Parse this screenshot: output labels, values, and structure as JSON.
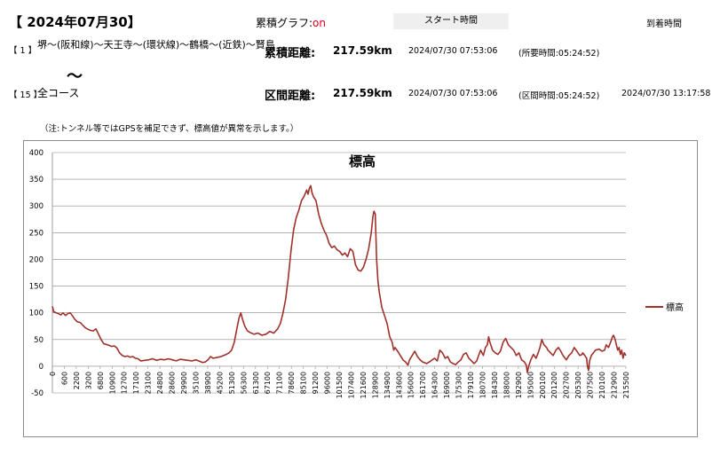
{
  "header": {
    "date": "【 2024年07月30】",
    "graph_label": "累積グラフ:",
    "graph_state": "on",
    "start_time_label": "スタート時間",
    "arrival_time_label": "到着時間"
  },
  "route": {
    "start_num": "【 1 】",
    "start_name": "堺～(阪和線)～天王寺～(環状線)～鶴橋～(近鉄)～賢島",
    "tilde": "～",
    "end_num": "【 15 】",
    "end_name": "全コース"
  },
  "rows": [
    {
      "label": "累積距離:",
      "distance": "217.59km",
      "start": "2024/07/30 07:53:06",
      "duration": "(所要時間:05:24:52)",
      "arrival": ""
    },
    {
      "label": "区間距離:",
      "distance": "217.59km",
      "start": "2024/07/30 07:53:06",
      "duration": "(区間時間:05:24:52)",
      "arrival": "2024/07/30 13:17:58"
    }
  ],
  "note": "（注:トンネル等ではGPSを補足できず、標高値が異常を示します。）",
  "chart_data": {
    "type": "line",
    "title": "標高",
    "xlabel": "",
    "ylabel": "",
    "ylim": [
      -50,
      400
    ],
    "yticks": [
      "400",
      "350",
      "300",
      "250",
      "200",
      "150",
      "100",
      "50",
      "0",
      "-50"
    ],
    "xticks": [
      "0",
      "600",
      "2200",
      "3200",
      "6800",
      "10900",
      "12700",
      "17100",
      "23100",
      "24800",
      "28600",
      "29900",
      "35100",
      "38900",
      "45200",
      "51300",
      "56300",
      "61300",
      "67100",
      "71100",
      "78600",
      "85100",
      "91200",
      "96000",
      "101500",
      "107400",
      "121600",
      "128900",
      "134900",
      "143600",
      "156000",
      "161700",
      "164300",
      "169000",
      "175300",
      "179100",
      "180700",
      "184300",
      "188000",
      "192900",
      "195000",
      "200100",
      "201200",
      "202700",
      "205300",
      "207500",
      "210100",
      "212900",
      "215500"
    ],
    "xmax": 217590,
    "grid": true,
    "legend_position": "right",
    "series": [
      {
        "name": "標高",
        "color": "#a0302a",
        "points": [
          [
            0,
            112
          ],
          [
            500,
            102
          ],
          [
            1500,
            100
          ],
          [
            2500,
            98
          ],
          [
            3200,
            96
          ],
          [
            4000,
            100
          ],
          [
            5000,
            95
          ],
          [
            6000,
            99
          ],
          [
            6800,
            100
          ],
          [
            7500,
            95
          ],
          [
            8500,
            88
          ],
          [
            9500,
            83
          ],
          [
            10500,
            82
          ],
          [
            11500,
            77
          ],
          [
            12500,
            72
          ],
          [
            13500,
            69
          ],
          [
            14500,
            67
          ],
          [
            15500,
            66
          ],
          [
            16500,
            70
          ],
          [
            17500,
            60
          ],
          [
            18500,
            50
          ],
          [
            19500,
            42
          ],
          [
            21000,
            40
          ],
          [
            22500,
            37
          ],
          [
            23500,
            38
          ],
          [
            24500,
            34
          ],
          [
            25500,
            25
          ],
          [
            26500,
            20
          ],
          [
            27500,
            18
          ],
          [
            28500,
            19
          ],
          [
            29500,
            17
          ],
          [
            30500,
            18
          ],
          [
            31500,
            15
          ],
          [
            32500,
            14
          ],
          [
            33500,
            10
          ],
          [
            35000,
            11
          ],
          [
            36500,
            12
          ],
          [
            38000,
            14
          ],
          [
            39500,
            11
          ],
          [
            41000,
            13
          ],
          [
            42500,
            12
          ],
          [
            44000,
            14
          ],
          [
            45500,
            12
          ],
          [
            47000,
            10
          ],
          [
            48500,
            13
          ],
          [
            50000,
            12
          ],
          [
            51500,
            11
          ],
          [
            53000,
            10
          ],
          [
            54500,
            12
          ],
          [
            56000,
            9
          ],
          [
            57000,
            7
          ],
          [
            58000,
            8
          ],
          [
            59000,
            12
          ],
          [
            60000,
            18
          ],
          [
            61000,
            15
          ],
          [
            62000,
            16
          ],
          [
            63000,
            17
          ],
          [
            64000,
            18
          ],
          [
            65000,
            20
          ],
          [
            66000,
            22
          ],
          [
            67000,
            25
          ],
          [
            68000,
            30
          ],
          [
            69000,
            45
          ],
          [
            70000,
            70
          ],
          [
            70800,
            90
          ],
          [
            71500,
            100
          ],
          [
            72000,
            90
          ],
          [
            73000,
            75
          ],
          [
            74000,
            66
          ],
          [
            75000,
            63
          ],
          [
            76500,
            60
          ],
          [
            78000,
            62
          ],
          [
            79500,
            58
          ],
          [
            81000,
            60
          ],
          [
            82500,
            65
          ],
          [
            84000,
            62
          ],
          [
            85500,
            70
          ],
          [
            86500,
            80
          ],
          [
            87500,
            100
          ],
          [
            88500,
            125
          ],
          [
            89500,
            165
          ],
          [
            90500,
            215
          ],
          [
            91500,
            255
          ],
          [
            92500,
            278
          ],
          [
            93500,
            292
          ],
          [
            94500,
            310
          ],
          [
            95500,
            318
          ],
          [
            96500,
            330
          ],
          [
            97000,
            322
          ],
          [
            97500,
            333
          ],
          [
            98000,
            338
          ],
          [
            98500,
            325
          ],
          [
            99000,
            318
          ],
          [
            100000,
            310
          ],
          [
            101000,
            285
          ],
          [
            102000,
            268
          ],
          [
            103000,
            255
          ],
          [
            104000,
            245
          ],
          [
            105000,
            230
          ],
          [
            106000,
            222
          ],
          [
            107000,
            225
          ],
          [
            108000,
            218
          ],
          [
            109000,
            215
          ],
          [
            110000,
            208
          ],
          [
            111000,
            212
          ],
          [
            112000,
            205
          ],
          [
            113000,
            220
          ],
          [
            114000,
            215
          ],
          [
            115000,
            190
          ],
          [
            116000,
            180
          ],
          [
            117000,
            178
          ],
          [
            118000,
            185
          ],
          [
            119000,
            200
          ],
          [
            120000,
            220
          ],
          [
            121000,
            250
          ],
          [
            121600,
            280
          ],
          [
            122000,
            290
          ],
          [
            122500,
            285
          ],
          [
            123000,
            200
          ],
          [
            123500,
            160
          ],
          [
            124000,
            140
          ],
          [
            125000,
            110
          ],
          [
            126000,
            95
          ],
          [
            127000,
            80
          ],
          [
            128000,
            55
          ],
          [
            128900,
            45
          ],
          [
            129500,
            30
          ],
          [
            130000,
            35
          ],
          [
            131000,
            28
          ],
          [
            132000,
            20
          ],
          [
            133000,
            12
          ],
          [
            134000,
            8
          ],
          [
            134900,
            2
          ],
          [
            135500,
            12
          ],
          [
            136500,
            20
          ],
          [
            137500,
            28
          ],
          [
            138500,
            18
          ],
          [
            139500,
            12
          ],
          [
            140500,
            8
          ],
          [
            142000,
            5
          ],
          [
            143600,
            10
          ],
          [
            145000,
            15
          ],
          [
            146000,
            10
          ],
          [
            147000,
            30
          ],
          [
            148000,
            25
          ],
          [
            149000,
            15
          ],
          [
            150000,
            18
          ],
          [
            151000,
            8
          ],
          [
            152000,
            5
          ],
          [
            153000,
            3
          ],
          [
            154000,
            8
          ],
          [
            155000,
            12
          ],
          [
            156000,
            22
          ],
          [
            157000,
            25
          ],
          [
            158000,
            15
          ],
          [
            159000,
            10
          ],
          [
            160000,
            5
          ],
          [
            161000,
            10
          ],
          [
            161700,
            20
          ],
          [
            162500,
            30
          ],
          [
            163500,
            20
          ],
          [
            164300,
            35
          ],
          [
            165000,
            40
          ],
          [
            165500,
            55
          ],
          [
            166000,
            45
          ],
          [
            167000,
            30
          ],
          [
            168000,
            25
          ],
          [
            169000,
            22
          ],
          [
            170000,
            28
          ],
          [
            171000,
            45
          ],
          [
            172000,
            52
          ],
          [
            173000,
            40
          ],
          [
            174000,
            35
          ],
          [
            175000,
            30
          ],
          [
            176000,
            20
          ],
          [
            177000,
            25
          ],
          [
            178000,
            12
          ],
          [
            179100,
            8
          ],
          [
            179800,
            2
          ],
          [
            180200,
            -12
          ],
          [
            180700,
            0
          ],
          [
            181500,
            12
          ],
          [
            182500,
            22
          ],
          [
            183500,
            15
          ],
          [
            184300,
            25
          ],
          [
            185000,
            35
          ],
          [
            185700,
            50
          ],
          [
            186500,
            40
          ],
          [
            187500,
            35
          ],
          [
            188000,
            30
          ],
          [
            189000,
            25
          ],
          [
            190000,
            20
          ],
          [
            191000,
            30
          ],
          [
            192000,
            35
          ],
          [
            192900,
            28
          ],
          [
            193500,
            22
          ],
          [
            194000,
            18
          ],
          [
            195000,
            12
          ],
          [
            196000,
            20
          ],
          [
            197000,
            25
          ],
          [
            198000,
            35
          ],
          [
            199000,
            28
          ],
          [
            200100,
            20
          ],
          [
            201000,
            22
          ],
          [
            201200,
            25
          ],
          [
            202000,
            20
          ],
          [
            202700,
            15
          ],
          [
            203000,
            0
          ],
          [
            203400,
            -8
          ],
          [
            203800,
            10
          ],
          [
            204500,
            20
          ],
          [
            205300,
            25
          ],
          [
            206000,
            30
          ],
          [
            207500,
            32
          ],
          [
            208500,
            28
          ],
          [
            209500,
            30
          ],
          [
            210100,
            40
          ],
          [
            211000,
            35
          ],
          [
            211800,
            45
          ],
          [
            212500,
            55
          ],
          [
            212900,
            58
          ],
          [
            213500,
            50
          ],
          [
            214000,
            40
          ],
          [
            214500,
            30
          ],
          [
            215000,
            35
          ],
          [
            215500,
            22
          ],
          [
            216000,
            30
          ],
          [
            216500,
            15
          ],
          [
            217000,
            25
          ],
          [
            217590,
            20
          ]
        ]
      }
    ]
  }
}
